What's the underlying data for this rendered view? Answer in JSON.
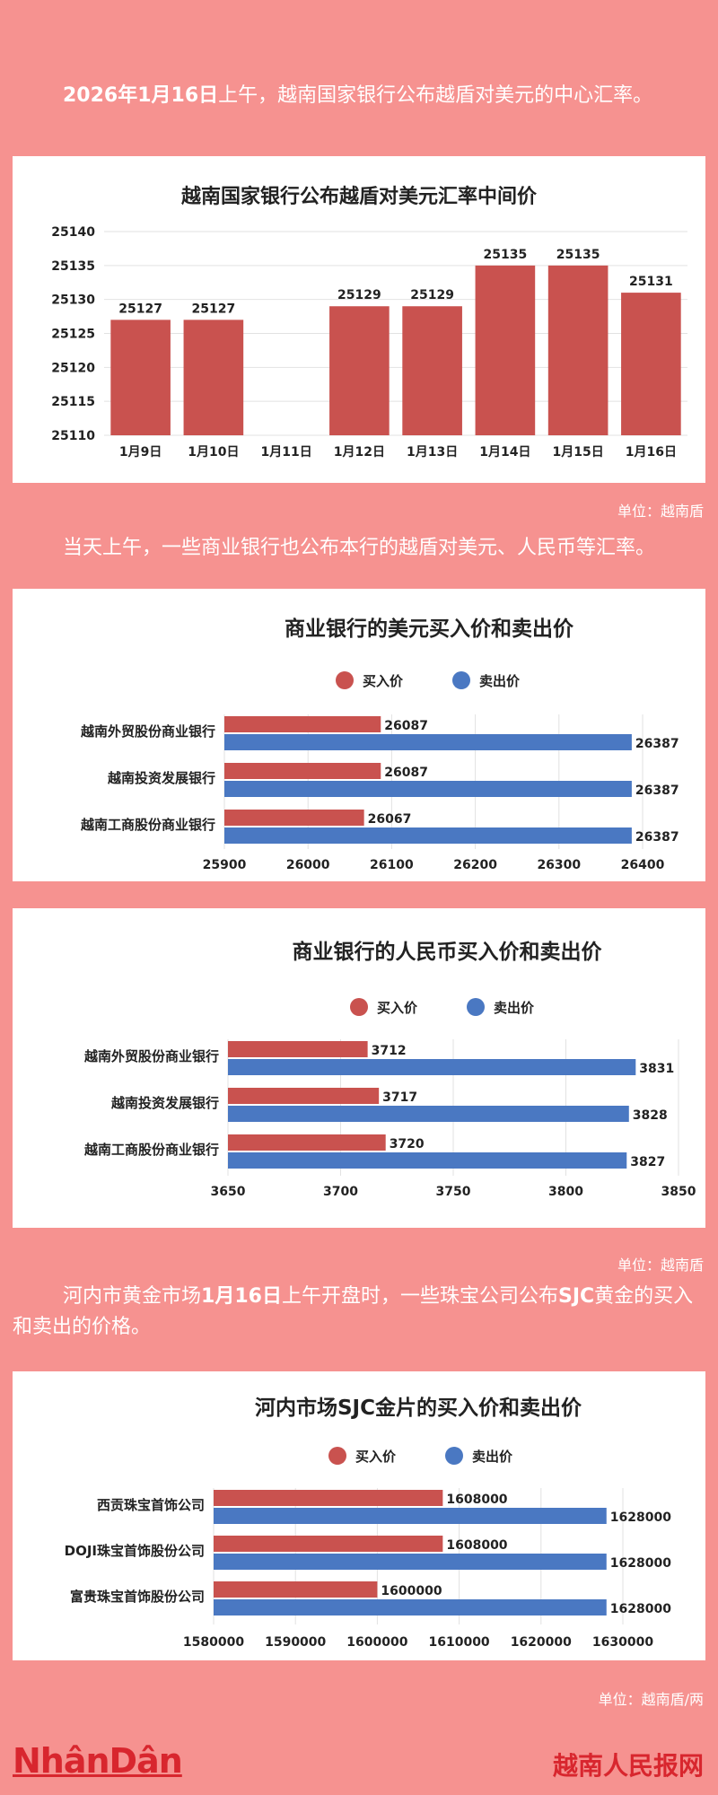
{
  "intro": {
    "bold_date": "2026年1月16日",
    "text": "上午，越南国家银行公布越盾对美元的中心汇率。"
  },
  "para2": "当天上午，一些商业银行也公布本行的越盾对美元、人民币等汇率。",
  "para3": {
    "before1": "河内市黄金市场",
    "bold1": "1月16日",
    "middle": "上午开盘时，一些珠宝公司公布",
    "bold2": "SJC",
    "after": "黄金的买入和卖出的价格。"
  },
  "unit_vnd_1": "单位：越南盾",
  "unit_vnd_2": "单位：越南盾",
  "unit_gold": "单位：越南盾/两",
  "footer": {
    "left": "NhânDân",
    "right": "越南人民报网"
  },
  "colors": {
    "buy": "#c9524f",
    "sell": "#4a78c2",
    "page_bg": "#f69290"
  },
  "legend": {
    "buy": "买入价",
    "sell": "卖出价"
  },
  "chart_data": [
    {
      "type": "bar",
      "title": "越南国家银行公布越盾对美元汇率中间价",
      "categories": [
        "1月9日",
        "1月10日",
        "1月11日",
        "1月12日",
        "1月13日",
        "1月14日",
        "1月15日",
        "1月16日"
      ],
      "values": [
        25127,
        25127,
        null,
        25129,
        25129,
        25135,
        25135,
        25131
      ],
      "labels": [
        "25127",
        "25127",
        "",
        "25129",
        "25129",
        "25135",
        "25135",
        "25131"
      ],
      "ylim": [
        25110,
        25140
      ],
      "yticks": [
        "25110",
        "25115",
        "25120",
        "25125",
        "25130",
        "25135",
        "25140"
      ],
      "grid": true
    },
    {
      "type": "bar",
      "orientation": "horizontal",
      "title": "商业银行的美元买入价和卖出价",
      "categories": [
        "越南外贸股份商业银行",
        "越南投资发展银行",
        "越南工商股份商业银行"
      ],
      "series": [
        {
          "name": "买入价",
          "values": [
            26087,
            26087,
            26067
          ],
          "labels": [
            "26087",
            "26087",
            "26067"
          ]
        },
        {
          "name": "卖出价",
          "values": [
            26387,
            26387,
            26387
          ],
          "labels": [
            "26387",
            "26387",
            "26387"
          ]
        }
      ],
      "xlim": [
        25900,
        26400
      ],
      "xticks": [
        "25900",
        "26000",
        "26100",
        "26200",
        "26300",
        "26400"
      ],
      "legend": "top"
    },
    {
      "type": "bar",
      "orientation": "horizontal",
      "title": "商业银行的人民币买入价和卖出价",
      "categories": [
        "越南外贸股份商业银行",
        "越南投资发展银行",
        "越南工商股份商业银行"
      ],
      "series": [
        {
          "name": "买入价",
          "values": [
            3712,
            3717,
            3720
          ],
          "labels": [
            "3712",
            "3717",
            "3720"
          ]
        },
        {
          "name": "卖出价",
          "values": [
            3831,
            3828,
            3827
          ],
          "labels": [
            "3831",
            "3828",
            "3827"
          ]
        }
      ],
      "xlim": [
        3650,
        3850
      ],
      "xticks": [
        "3650",
        "3700",
        "3750",
        "3800",
        "3850"
      ],
      "legend": "top"
    },
    {
      "type": "bar",
      "orientation": "horizontal",
      "title": "河内市场SJC金片的买入价和卖出价",
      "categories": [
        "西贡珠宝首饰公司",
        "DOJI珠宝首饰股份公司",
        "富贵珠宝首饰股份公司"
      ],
      "series": [
        {
          "name": "买入价",
          "values": [
            1608000,
            1608000,
            1600000
          ],
          "labels": [
            "1608000",
            "1608000",
            "1600000"
          ]
        },
        {
          "name": "卖出价",
          "values": [
            1628000,
            1628000,
            1628000
          ],
          "labels": [
            "1628000",
            "1628000",
            "1628000"
          ]
        }
      ],
      "xlim": [
        1580000,
        1630000
      ],
      "xticks": [
        "1580000",
        "1590000",
        "1600000",
        "1610000",
        "1620000",
        "1630000"
      ],
      "legend": "top"
    }
  ]
}
